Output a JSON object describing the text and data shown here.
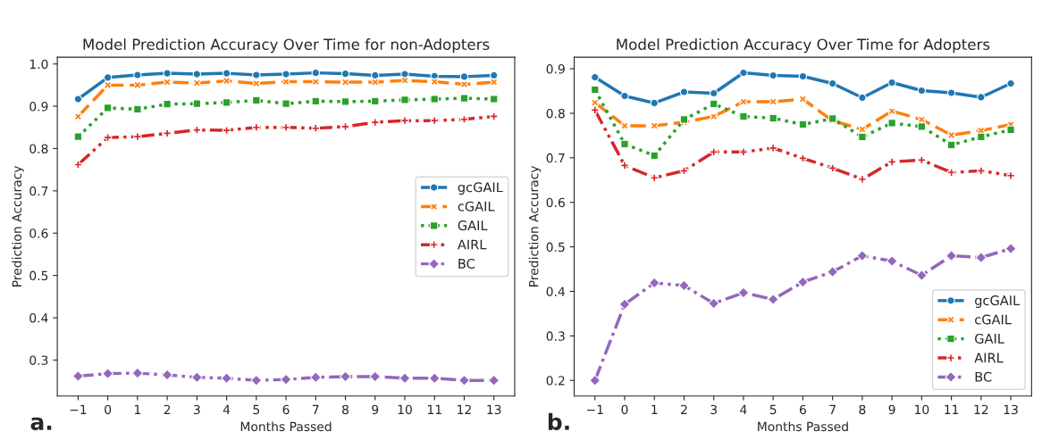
{
  "chart_data": [
    {
      "type": "line",
      "title": "Model Prediction Accuracy Over Time for non-Adopters",
      "xlabel": "Months Passed",
      "ylabel": "Prediction Accuracy",
      "x": [
        -1,
        0,
        1,
        2,
        3,
        4,
        5,
        6,
        7,
        8,
        9,
        10,
        11,
        12,
        13
      ],
      "xlim": [
        -1.7,
        13.7
      ],
      "xticks": [
        {
          "value": -1,
          "label": "−1"
        },
        0,
        1,
        2,
        3,
        4,
        5,
        6,
        7,
        8,
        9,
        10,
        11,
        12,
        13
      ],
      "ylim": [
        0.215,
        1.016
      ],
      "yticks": [
        0.3,
        0.4,
        0.5,
        0.6,
        0.7,
        0.8,
        0.9,
        {
          "value": 1,
          "label": "1.0"
        }
      ],
      "legend": "right",
      "grid": false,
      "annotations": [
        "a."
      ],
      "series": [
        {
          "name": "gcGAIL",
          "color": "#1f77b4",
          "marker": "circle",
          "line_style": "solid",
          "values": [
            0.917,
            0.968,
            0.974,
            0.978,
            0.976,
            0.978,
            0.974,
            0.976,
            0.979,
            0.977,
            0.973,
            0.976,
            0.971,
            0.97,
            0.973
          ]
        },
        {
          "name": "cGAIL",
          "color": "#ff7f0e",
          "marker": "cross",
          "line_style": "dashed",
          "values": [
            0.876,
            0.95,
            0.95,
            0.957,
            0.955,
            0.96,
            0.954,
            0.958,
            0.958,
            0.957,
            0.957,
            0.961,
            0.958,
            0.952,
            0.957
          ]
        },
        {
          "name": "GAIL",
          "color": "#2ca02c",
          "marker": "square",
          "line_style": "dotted",
          "values": [
            0.828,
            0.896,
            0.893,
            0.905,
            0.906,
            0.909,
            0.914,
            0.906,
            0.912,
            0.911,
            0.912,
            0.915,
            0.917,
            0.919,
            0.917
          ]
        },
        {
          "name": "AIRL",
          "color": "#d62728",
          "marker": "plus",
          "line_style": "dashdotdot",
          "values": [
            0.762,
            0.826,
            0.828,
            0.836,
            0.844,
            0.843,
            0.85,
            0.85,
            0.848,
            0.852,
            0.862,
            0.866,
            0.866,
            0.869,
            0.876
          ]
        },
        {
          "name": "BC",
          "color": "#9467bd",
          "marker": "diamond",
          "line_style": "dashdot",
          "values": [
            0.262,
            0.268,
            0.269,
            0.265,
            0.259,
            0.257,
            0.252,
            0.254,
            0.259,
            0.261,
            0.261,
            0.257,
            0.257,
            0.252,
            0.252
          ]
        }
      ]
    },
    {
      "type": "line",
      "title": "Model Prediction Accuracy Over Time for Adopters",
      "xlabel": "Months Passed",
      "ylabel": "Prediction Accuracy",
      "x": [
        -1,
        0,
        1,
        2,
        3,
        4,
        5,
        6,
        7,
        8,
        9,
        10,
        11,
        12,
        13
      ],
      "xlim": [
        -1.7,
        13.7
      ],
      "xticks": [
        {
          "value": -1,
          "label": "−1"
        },
        0,
        1,
        2,
        3,
        4,
        5,
        6,
        7,
        8,
        9,
        10,
        11,
        12,
        13
      ],
      "ylim": [
        0.165,
        0.926
      ],
      "yticks": [
        0.2,
        0.3,
        0.4,
        0.5,
        0.6,
        0.7,
        0.8,
        0.9
      ],
      "legend": "bottom right",
      "grid": false,
      "annotations": [
        "b."
      ],
      "series": [
        {
          "name": "gcGAIL",
          "color": "#1f77b4",
          "marker": "circle",
          "line_style": "solid",
          "values": [
            0.881,
            0.839,
            0.823,
            0.848,
            0.845,
            0.891,
            0.885,
            0.883,
            0.867,
            0.835,
            0.869,
            0.851,
            0.846,
            0.836,
            0.867
          ]
        },
        {
          "name": "cGAIL",
          "color": "#ff7f0e",
          "marker": "cross",
          "line_style": "dashed",
          "values": [
            0.824,
            0.772,
            0.772,
            0.78,
            0.793,
            0.826,
            0.826,
            0.832,
            0.783,
            0.764,
            0.805,
            0.786,
            0.751,
            0.761,
            0.775
          ]
        },
        {
          "name": "GAIL",
          "color": "#2ca02c",
          "marker": "square",
          "line_style": "dotted",
          "values": [
            0.853,
            0.731,
            0.705,
            0.786,
            0.821,
            0.793,
            0.789,
            0.775,
            0.788,
            0.747,
            0.778,
            0.77,
            0.729,
            0.747,
            0.763
          ]
        },
        {
          "name": "AIRL",
          "color": "#d62728",
          "marker": "plus",
          "line_style": "dashdotdot",
          "values": [
            0.807,
            0.683,
            0.655,
            0.671,
            0.713,
            0.713,
            0.722,
            0.699,
            0.677,
            0.652,
            0.691,
            0.695,
            0.667,
            0.671,
            0.66
          ]
        },
        {
          "name": "BC",
          "color": "#9467bd",
          "marker": "diamond",
          "line_style": "dashdot",
          "values": [
            0.2,
            0.371,
            0.419,
            0.413,
            0.373,
            0.397,
            0.382,
            0.421,
            0.444,
            0.48,
            0.468,
            0.436,
            0.48,
            0.476,
            0.496
          ]
        }
      ]
    }
  ]
}
